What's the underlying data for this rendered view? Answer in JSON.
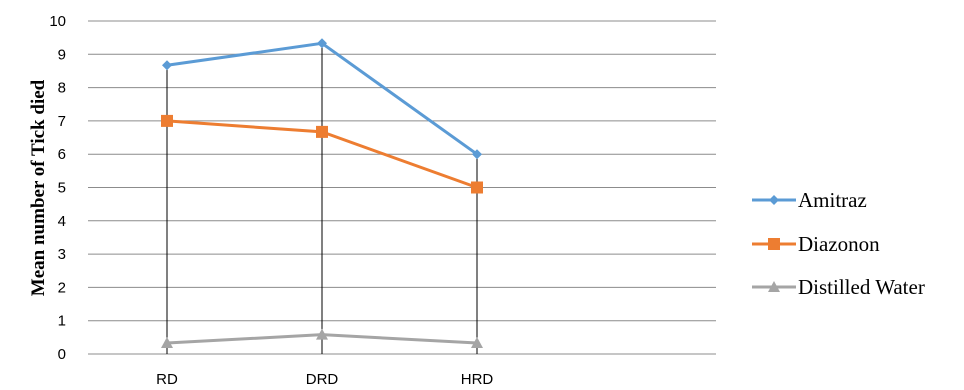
{
  "chart_data": {
    "type": "line",
    "title": "",
    "xlabel": "",
    "ylabel": "Mean number of Tick died",
    "categories": [
      "RD",
      "DRD",
      "HRD"
    ],
    "ylim": [
      0,
      10
    ],
    "yticks": [
      0,
      1,
      2,
      3,
      4,
      5,
      6,
      7,
      8,
      9,
      10
    ],
    "grid": true,
    "legend_position": "right",
    "series": [
      {
        "name": "Amitraz",
        "values": [
          8.67,
          9.33,
          6.0
        ],
        "color": "#5B9BD5",
        "marker": "diamond"
      },
      {
        "name": "Diazonon",
        "values": [
          7.0,
          6.67,
          5.0
        ],
        "color": "#ED7D31",
        "marker": "square"
      },
      {
        "name": "Distilled Water",
        "values": [
          0.33,
          0.58,
          0.33
        ],
        "color": "#A5A5A5",
        "marker": "triangle"
      }
    ],
    "drop_lines": true
  }
}
